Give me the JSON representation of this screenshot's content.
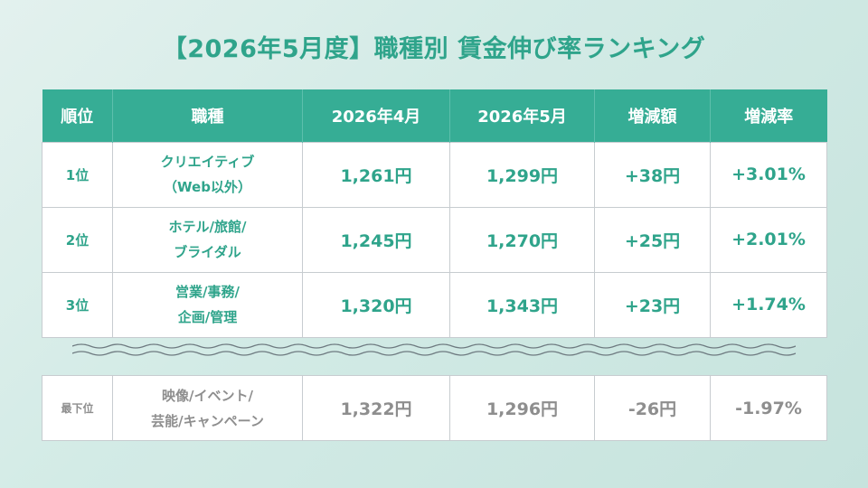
{
  "title": "【2026年5月度】職種別 賃金伸び率ランキング",
  "headers": [
    "順位",
    "職種",
    "2026年4月",
    "2026年5月",
    "増減額",
    "増減率"
  ],
  "rows": [
    {
      "rank": "1位",
      "job_line1": "クリエイティブ",
      "job_line2": "（Web以外）",
      "april": "1,261円",
      "may": "1,299円",
      "diff": "+38円",
      "rate": "+3.01%"
    },
    {
      "rank": "2位",
      "job_line1": "ホテル/旅館/",
      "job_line2": "ブライダル",
      "april": "1,245円",
      "may": "1,270円",
      "diff": "+25円",
      "rate": "+2.01%"
    },
    {
      "rank": "3位",
      "job_line1": "営業/事務/",
      "job_line2": "企画/管理",
      "april": "1,320円",
      "may": "1,343円",
      "diff": "+23円",
      "rate": "+1.74%"
    }
  ],
  "last": {
    "rank": "最下位",
    "job_line1": "映像/イベント/",
    "job_line2": "芸能/キャンペーン",
    "april": "1,322円",
    "may": "1,296円",
    "diff": "-26円",
    "rate": "-1.97%"
  },
  "colors": {
    "accent": "#36ad95",
    "text_accent": "#2fa48b",
    "muted": "#8e8e8e",
    "border": "#c7ccd0"
  }
}
